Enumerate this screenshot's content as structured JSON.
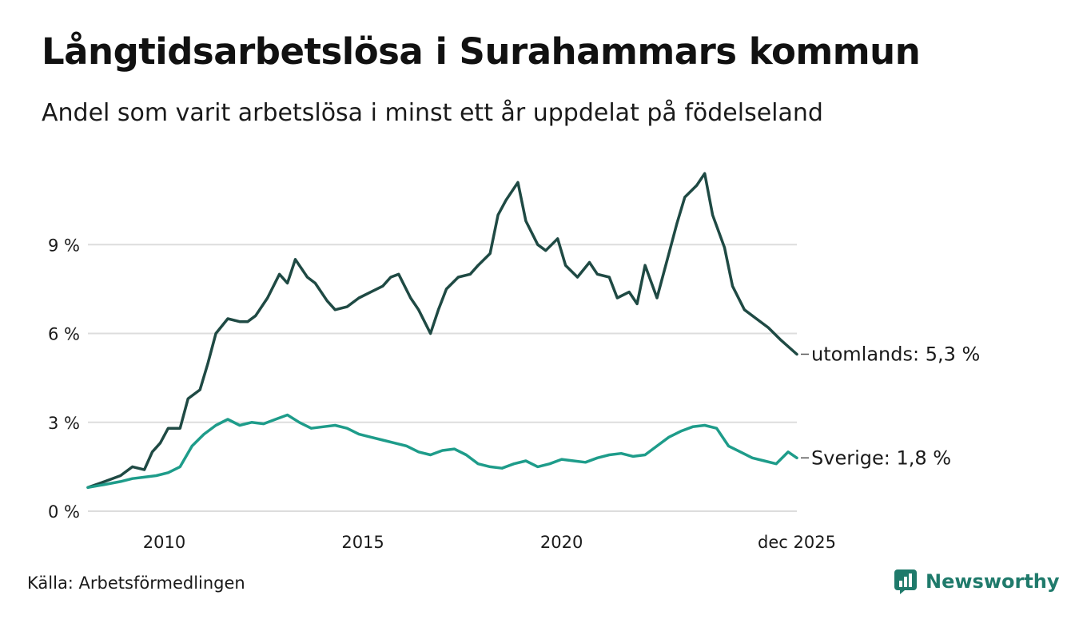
{
  "title": "Långtidsarbetslösa i Surahammars kommun",
  "subtitle": "Andel som varit arbetslösa i minst ett år uppdelat på födelseland",
  "source": "Källa: Arbetsförmedlingen",
  "brand": "Newsworthy",
  "colors": {
    "utomlands": "#1f4a44",
    "sverige": "#1e9c8a",
    "grid": "#dddddd",
    "brand": "#1f7a6b"
  },
  "chart_data": {
    "type": "line",
    "title": "Långtidsarbetslösa i Surahammars kommun",
    "subtitle": "Andel som varit arbetslösa i minst ett år uppdelat på födelseland",
    "ylabel": "",
    "ylim": [
      0,
      12
    ],
    "xlim": [
      2008.08,
      2025.92
    ],
    "grid": true,
    "y_ticks": [
      0,
      3,
      6,
      9
    ],
    "y_tick_labels": [
      "0 %",
      "3 %",
      "6 %",
      "9 %"
    ],
    "x_ticks": [
      2010,
      2015,
      2020,
      2025.92
    ],
    "x_tick_labels": [
      "2010",
      "2015",
      "2020",
      "dec 2025"
    ],
    "series": [
      {
        "name": "utomlands",
        "end_label": "utomlands: 5,3 %",
        "points": [
          [
            2008.08,
            0.8
          ],
          [
            2008.5,
            1.0
          ],
          [
            2008.9,
            1.2
          ],
          [
            2009.2,
            1.5
          ],
          [
            2009.5,
            1.4
          ],
          [
            2009.7,
            2.0
          ],
          [
            2009.9,
            2.3
          ],
          [
            2010.1,
            2.8
          ],
          [
            2010.4,
            2.8
          ],
          [
            2010.6,
            3.8
          ],
          [
            2010.9,
            4.1
          ],
          [
            2011.1,
            5.0
          ],
          [
            2011.3,
            6.0
          ],
          [
            2011.6,
            6.5
          ],
          [
            2011.9,
            6.4
          ],
          [
            2012.1,
            6.4
          ],
          [
            2012.3,
            6.6
          ],
          [
            2012.6,
            7.2
          ],
          [
            2012.9,
            8.0
          ],
          [
            2013.1,
            7.7
          ],
          [
            2013.3,
            8.5
          ],
          [
            2013.6,
            7.9
          ],
          [
            2013.8,
            7.7
          ],
          [
            2014.1,
            7.1
          ],
          [
            2014.3,
            6.8
          ],
          [
            2014.6,
            6.9
          ],
          [
            2014.9,
            7.2
          ],
          [
            2015.2,
            7.4
          ],
          [
            2015.5,
            7.6
          ],
          [
            2015.7,
            7.9
          ],
          [
            2015.9,
            8.0
          ],
          [
            2016.2,
            7.2
          ],
          [
            2016.4,
            6.8
          ],
          [
            2016.7,
            6.0
          ],
          [
            2016.9,
            6.8
          ],
          [
            2017.1,
            7.5
          ],
          [
            2017.4,
            7.9
          ],
          [
            2017.7,
            8.0
          ],
          [
            2017.9,
            8.3
          ],
          [
            2018.2,
            8.7
          ],
          [
            2018.4,
            10.0
          ],
          [
            2018.6,
            10.5
          ],
          [
            2018.9,
            11.1
          ],
          [
            2019.1,
            9.8
          ],
          [
            2019.4,
            9.0
          ],
          [
            2019.6,
            8.8
          ],
          [
            2019.9,
            9.2
          ],
          [
            2020.1,
            8.3
          ],
          [
            2020.4,
            7.9
          ],
          [
            2020.7,
            8.4
          ],
          [
            2020.9,
            8.0
          ],
          [
            2021.2,
            7.9
          ],
          [
            2021.4,
            7.2
          ],
          [
            2021.7,
            7.4
          ],
          [
            2021.9,
            7.0
          ],
          [
            2022.1,
            8.3
          ],
          [
            2022.4,
            7.2
          ],
          [
            2022.7,
            8.7
          ],
          [
            2022.9,
            9.7
          ],
          [
            2023.1,
            10.6
          ],
          [
            2023.4,
            11.0
          ],
          [
            2023.6,
            11.4
          ],
          [
            2023.8,
            10.0
          ],
          [
            2024.1,
            8.9
          ],
          [
            2024.3,
            7.6
          ],
          [
            2024.6,
            6.8
          ],
          [
            2024.9,
            6.5
          ],
          [
            2025.2,
            6.2
          ],
          [
            2025.5,
            5.8
          ],
          [
            2025.92,
            5.3
          ]
        ]
      },
      {
        "name": "Sverige",
        "end_label": "Sverige: 1,8 %",
        "points": [
          [
            2008.08,
            0.8
          ],
          [
            2008.5,
            0.9
          ],
          [
            2008.9,
            1.0
          ],
          [
            2009.2,
            1.1
          ],
          [
            2009.5,
            1.15
          ],
          [
            2009.8,
            1.2
          ],
          [
            2010.1,
            1.3
          ],
          [
            2010.4,
            1.5
          ],
          [
            2010.7,
            2.2
          ],
          [
            2011.0,
            2.6
          ],
          [
            2011.3,
            2.9
          ],
          [
            2011.6,
            3.1
          ],
          [
            2011.9,
            2.9
          ],
          [
            2012.2,
            3.0
          ],
          [
            2012.5,
            2.95
          ],
          [
            2012.8,
            3.1
          ],
          [
            2013.1,
            3.25
          ],
          [
            2013.4,
            3.0
          ],
          [
            2013.7,
            2.8
          ],
          [
            2014.0,
            2.85
          ],
          [
            2014.3,
            2.9
          ],
          [
            2014.6,
            2.8
          ],
          [
            2014.9,
            2.6
          ],
          [
            2015.2,
            2.5
          ],
          [
            2015.5,
            2.4
          ],
          [
            2015.8,
            2.3
          ],
          [
            2016.1,
            2.2
          ],
          [
            2016.4,
            2.0
          ],
          [
            2016.7,
            1.9
          ],
          [
            2017.0,
            2.05
          ],
          [
            2017.3,
            2.1
          ],
          [
            2017.6,
            1.9
          ],
          [
            2017.9,
            1.6
          ],
          [
            2018.2,
            1.5
          ],
          [
            2018.5,
            1.45
          ],
          [
            2018.8,
            1.6
          ],
          [
            2019.1,
            1.7
          ],
          [
            2019.4,
            1.5
          ],
          [
            2019.7,
            1.6
          ],
          [
            2020.0,
            1.75
          ],
          [
            2020.3,
            1.7
          ],
          [
            2020.6,
            1.65
          ],
          [
            2020.9,
            1.8
          ],
          [
            2021.2,
            1.9
          ],
          [
            2021.5,
            1.95
          ],
          [
            2021.8,
            1.85
          ],
          [
            2022.1,
            1.9
          ],
          [
            2022.4,
            2.2
          ],
          [
            2022.7,
            2.5
          ],
          [
            2023.0,
            2.7
          ],
          [
            2023.3,
            2.85
          ],
          [
            2023.6,
            2.9
          ],
          [
            2023.9,
            2.8
          ],
          [
            2024.2,
            2.2
          ],
          [
            2024.5,
            2.0
          ],
          [
            2024.8,
            1.8
          ],
          [
            2025.1,
            1.7
          ],
          [
            2025.4,
            1.6
          ],
          [
            2025.7,
            2.0
          ],
          [
            2025.92,
            1.8
          ]
        ]
      }
    ]
  }
}
